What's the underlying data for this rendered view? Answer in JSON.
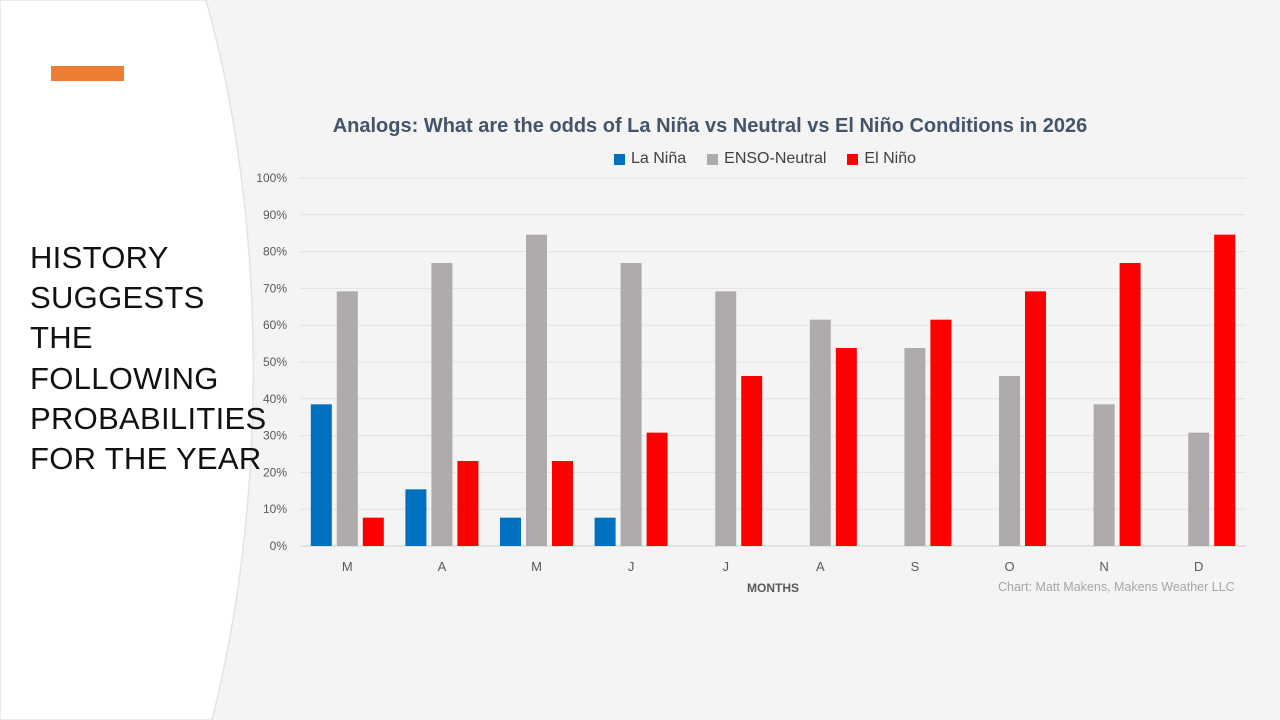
{
  "slide": {
    "headline_lines": [
      "HISTORY",
      "SUGGESTS",
      "THE",
      "FOLLOWING",
      "PROBABILITIES",
      "FOR THE YEAR"
    ],
    "accent_color": "#ed7d31"
  },
  "chart_data": {
    "type": "bar",
    "title": "Analogs: What are the odds of La Niña vs Neutral vs El Niño Conditions in 2026",
    "xlabel": "MONTHS",
    "ylabel": "",
    "ylim": [
      0,
      100
    ],
    "y_ticks": [
      "0%",
      "10%",
      "20%",
      "30%",
      "40%",
      "50%",
      "60%",
      "70%",
      "80%",
      "90%",
      "100%"
    ],
    "categories": [
      "M",
      "A",
      "M",
      "J",
      "J",
      "A",
      "S",
      "O",
      "N",
      "D"
    ],
    "series": [
      {
        "name": "La Niña",
        "color": "#0070c0",
        "values": [
          38.5,
          15.4,
          7.7,
          7.7,
          0,
          0,
          0,
          0,
          0,
          0
        ]
      },
      {
        "name": "ENSO-Neutral",
        "color": "#afabab",
        "values": [
          69.2,
          76.9,
          84.6,
          76.9,
          69.2,
          61.5,
          53.8,
          46.2,
          38.5,
          30.8
        ]
      },
      {
        "name": "El Niño",
        "color": "#ff0000",
        "values": [
          7.7,
          23.1,
          23.1,
          30.8,
          46.2,
          53.8,
          61.5,
          69.2,
          76.9,
          84.6
        ]
      }
    ],
    "grid": true,
    "legend_position": "top",
    "credit": "Chart: Matt Makens, Makens Weather LLC"
  }
}
